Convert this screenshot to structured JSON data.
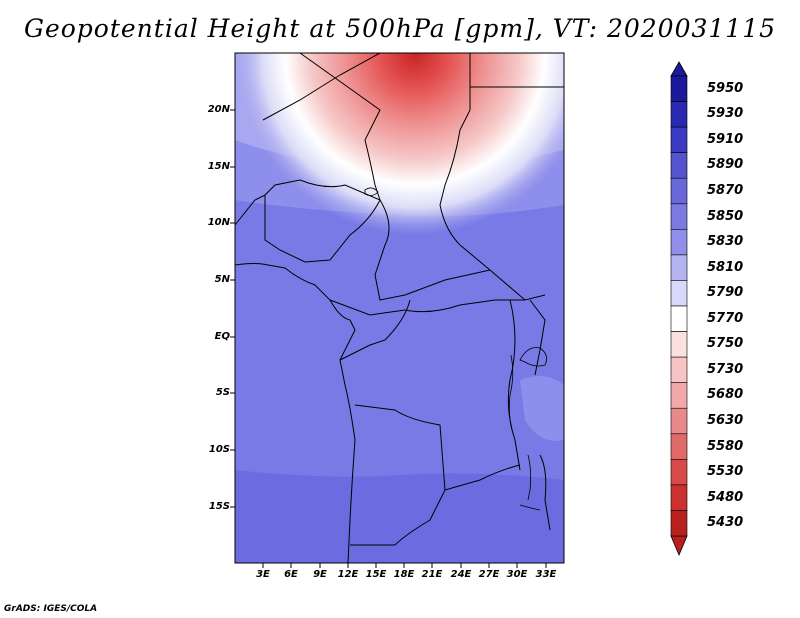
{
  "title": "Geopotential Height at 500hPa [gpm], VT: 2020031115",
  "credit": "GrADS: IGES/COLA",
  "map": {
    "variable": "Geopotential Height",
    "level": "500hPa",
    "units": "gpm",
    "valid_time": "2020031115",
    "lat_labels": [
      "20N",
      "15N",
      "10N",
      "5N",
      "EQ",
      "5S",
      "10S",
      "15S"
    ],
    "lon_labels": [
      "3E",
      "6E",
      "9E",
      "12E",
      "15E",
      "18E",
      "21E",
      "24E",
      "27E",
      "30E",
      "33E"
    ],
    "fill_colors": {
      "deep_red": "#c82626",
      "red": "#e45050",
      "salmon": "#ee8f8f",
      "pink": "#f6c8c8",
      "white": "#ffffff",
      "lavender": "#dcdcf8",
      "light_blue": "#a8a8f0",
      "mid_blue": "#8e8eec",
      "blue": "#7a7ae6",
      "dark_blue": "#6c6ce0"
    }
  },
  "colorbar": {
    "labels": [
      "5950",
      "5930",
      "5910",
      "5890",
      "5870",
      "5850",
      "5830",
      "5810",
      "5790",
      "5770",
      "5750",
      "5730",
      "5680",
      "5630",
      "5580",
      "5530",
      "5480",
      "5430"
    ],
    "colors": [
      "#1a1a9a",
      "#2a2ab0",
      "#3a3ac2",
      "#5454cc",
      "#6868d8",
      "#7a7ae0",
      "#9090ea",
      "#b4b4f2",
      "#d8d8fa",
      "#ffffff",
      "#fbe0e0",
      "#f6c4c4",
      "#f0a8a8",
      "#e88a8a",
      "#e06a6a",
      "#d84a4a",
      "#cc3030",
      "#b82020"
    ]
  }
}
